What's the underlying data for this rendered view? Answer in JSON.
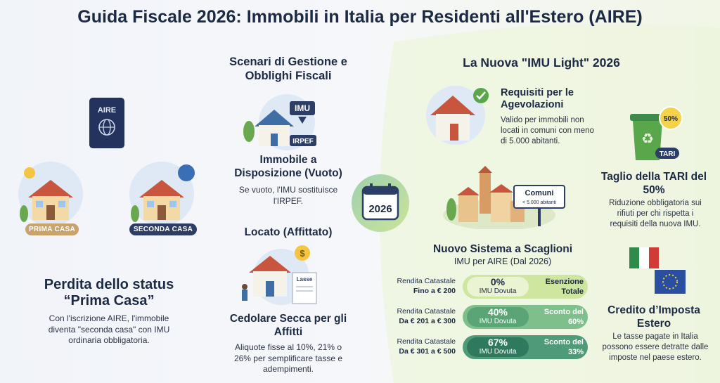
{
  "header": {
    "title": "Guida Fiscale 2026: Immobili in Italia per Residenti all'Estero (AIRE)"
  },
  "left": {
    "passport": "AIRE",
    "badge_first": "PRIMA CASA",
    "badge_second": "SECONDA CASA",
    "heading": "Perdita dello status “Prima Casa”",
    "text": "Con l'iscrizione AIRE, l'immobile diventa \"seconda casa\" con IMU ordinaria obbligatoria."
  },
  "middle": {
    "heading": "Scenari di Gestione e Obblighi Fiscali",
    "vacant": {
      "icon_top": "IMU",
      "icon_bottom": "IRPEF",
      "heading": "Immobile a Disposizione (Vuoto)",
      "text": "Se vuoto, l'IMU sostituisce l'IRPEF."
    },
    "rented": {
      "heading": "Locato (Affittato)",
      "icon_doc": "Lasse",
      "subheading": "Cedolare Secca per gli Affitti",
      "text": "Aliquote fisse al 10%, 21% o 26% per semplificare tasse e adempimenti."
    },
    "calendar": "2026"
  },
  "right": {
    "heading": "La Nuova \"IMU Light\" 2026",
    "requirements": {
      "heading": "Requisiti per le Agevolazioni",
      "text": "Valido per immobili non locati in comuni con meno di 5.000 abitanti."
    },
    "sign": {
      "title": "Comuni",
      "subtitle": "< 5.000 abitanti"
    },
    "brackets": {
      "heading": "Nuovo Sistema a Scaglioni",
      "subheading": "IMU per AIRE (Dal 2026)",
      "rows": [
        {
          "label": "Rendita Catastale",
          "range": "Fino a € 200",
          "percent": "0%",
          "due": "IMU Dovuta",
          "note": "Esenzione Totale"
        },
        {
          "label": "Rendita Catastale",
          "range": "Da € 201 a € 300",
          "percent": "40%",
          "due": "IMU Dovuta",
          "note": "Sconto del 60%"
        },
        {
          "label": "Rendita Catastale",
          "range": "Da € 301 a € 500",
          "percent": "67%",
          "due": "IMU Dovuta",
          "note": "Sconto del 33%"
        }
      ]
    }
  },
  "far_right": {
    "bin_badge": "50%",
    "bin_label": "TARI",
    "tari": {
      "heading": "Taglio della TARI del 50%",
      "text": "Riduzione obbligatoria sui rifiuti per chi rispetta i requisiti della nuova IMU."
    },
    "credit": {
      "heading": "Credito d’Imposta Estero",
      "text": "Le tasse pagate in Italia possono essere detratte dalle imposte nel paese estero."
    }
  }
}
